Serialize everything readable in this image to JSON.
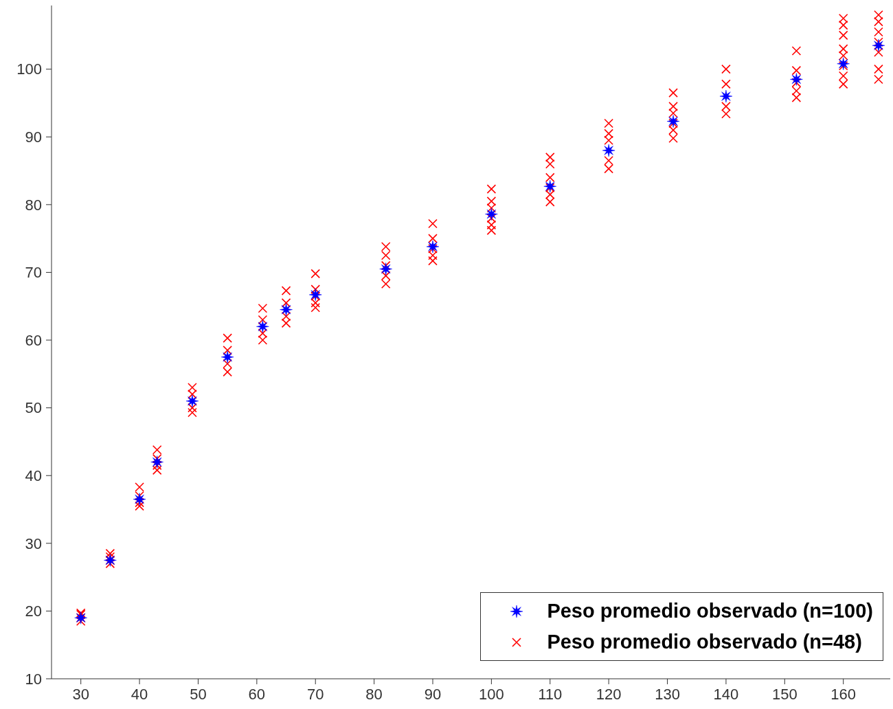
{
  "chart_data": {
    "type": "scatter",
    "xlim": [
      25,
      168
    ],
    "xticks": [
      30,
      40,
      50,
      60,
      70,
      80,
      90,
      100,
      110,
      120,
      130,
      140,
      150,
      160
    ],
    "ylim": [
      10,
      109.4
    ],
    "yticks": [
      10,
      20,
      30,
      40,
      50,
      60,
      70,
      80,
      90,
      100
    ],
    "legend": "bottom right",
    "series": [
      {
        "name": "Peso promedio observado (n=48)",
        "color": "#ff0000",
        "marker": "cross",
        "x": [
          30,
          30,
          30,
          30,
          35,
          35,
          35,
          35,
          40,
          40,
          40,
          40,
          43,
          43,
          43,
          43,
          49,
          49,
          49,
          49,
          55,
          55,
          55,
          55,
          61,
          61,
          61,
          61,
          65,
          65,
          65,
          65,
          70,
          70,
          70,
          70,
          70,
          82,
          82,
          82,
          82,
          82,
          90,
          90,
          90,
          90,
          90,
          100,
          100,
          100,
          100,
          100,
          100,
          110,
          110,
          110,
          110,
          110,
          110,
          120,
          120,
          120,
          120,
          120,
          131,
          131,
          131,
          131,
          131,
          131,
          140,
          140,
          140,
          140,
          152,
          152,
          152,
          152,
          152,
          160,
          160,
          160,
          160,
          160,
          160,
          160,
          160,
          166,
          166,
          166,
          166,
          166,
          166,
          166
        ],
        "values": [
          18.5,
          19,
          19.5,
          19.7,
          27,
          27.5,
          28,
          28.5,
          35.5,
          36,
          37,
          38.3,
          40.8,
          41.5,
          42.5,
          43.8,
          49.3,
          50,
          52,
          53,
          55.3,
          56.5,
          58.5,
          60.3,
          60,
          61,
          63,
          64.7,
          62.5,
          63.5,
          65.5,
          67.3,
          64.8,
          65.5,
          66.5,
          67.5,
          69.8,
          68.3,
          69.5,
          71,
          72.5,
          73.8,
          71.7,
          72.5,
          73.5,
          75,
          77.2,
          76.2,
          77,
          78,
          79.5,
          80.5,
          82.3,
          80.4,
          81.5,
          82.5,
          84,
          86,
          87,
          85.3,
          86.5,
          89.5,
          90.5,
          92,
          89.8,
          91,
          92,
          93.5,
          94.5,
          96.5,
          93.4,
          94.5,
          97.8,
          100,
          95.8,
          96.8,
          98,
          99.8,
          102.7,
          97.8,
          99,
          100.5,
          102,
          103,
          105,
          106.5,
          107.5,
          98.5,
          100,
          102.5,
          104,
          105.5,
          107,
          108
        ]
      },
      {
        "name": "Peso promedio observado (n=100)",
        "color": "#0000ff",
        "marker": "star",
        "x": [
          30,
          35,
          40,
          43,
          49,
          55,
          61,
          65,
          70,
          82,
          90,
          100,
          110,
          120,
          131,
          140,
          152,
          160,
          166
        ],
        "values": [
          19,
          27.5,
          36.5,
          42,
          51,
          57.5,
          62,
          64.5,
          66.7,
          70.5,
          73.8,
          78.6,
          82.7,
          88,
          92.3,
          96,
          98.5,
          100.8,
          103.5
        ]
      }
    ]
  }
}
